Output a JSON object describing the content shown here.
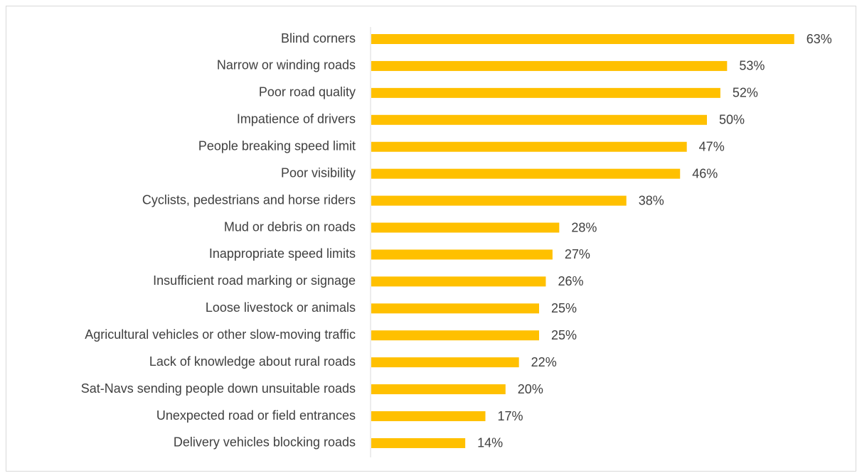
{
  "chart_data": {
    "type": "barh",
    "categories": [
      "Blind corners",
      "Narrow or winding roads",
      "Poor road quality",
      "Impatience of drivers",
      "People breaking speed limit",
      "Poor visibility",
      "Cyclists, pedestrians and horse riders",
      "Mud or debris on roads",
      "Inappropriate speed limits",
      "Insufficient road marking or signage",
      "Loose livestock or animals",
      "Agricultural vehicles or other slow-moving traffic",
      "Lack of knowledge about rural roads",
      "Sat-Navs sending people down unsuitable roads",
      "Unexpected road or field entrances",
      "Delivery vehicles blocking roads"
    ],
    "values": [
      63,
      53,
      52,
      50,
      47,
      46,
      38,
      28,
      27,
      26,
      25,
      25,
      22,
      20,
      17,
      14
    ],
    "value_labels": [
      "63%",
      "53%",
      "52%",
      "50%",
      "47%",
      "46%",
      "38%",
      "28%",
      "27%",
      "26%",
      "25%",
      "25%",
      "22%",
      "20%",
      "17%",
      "14%"
    ],
    "color": "#ffc000"
  }
}
